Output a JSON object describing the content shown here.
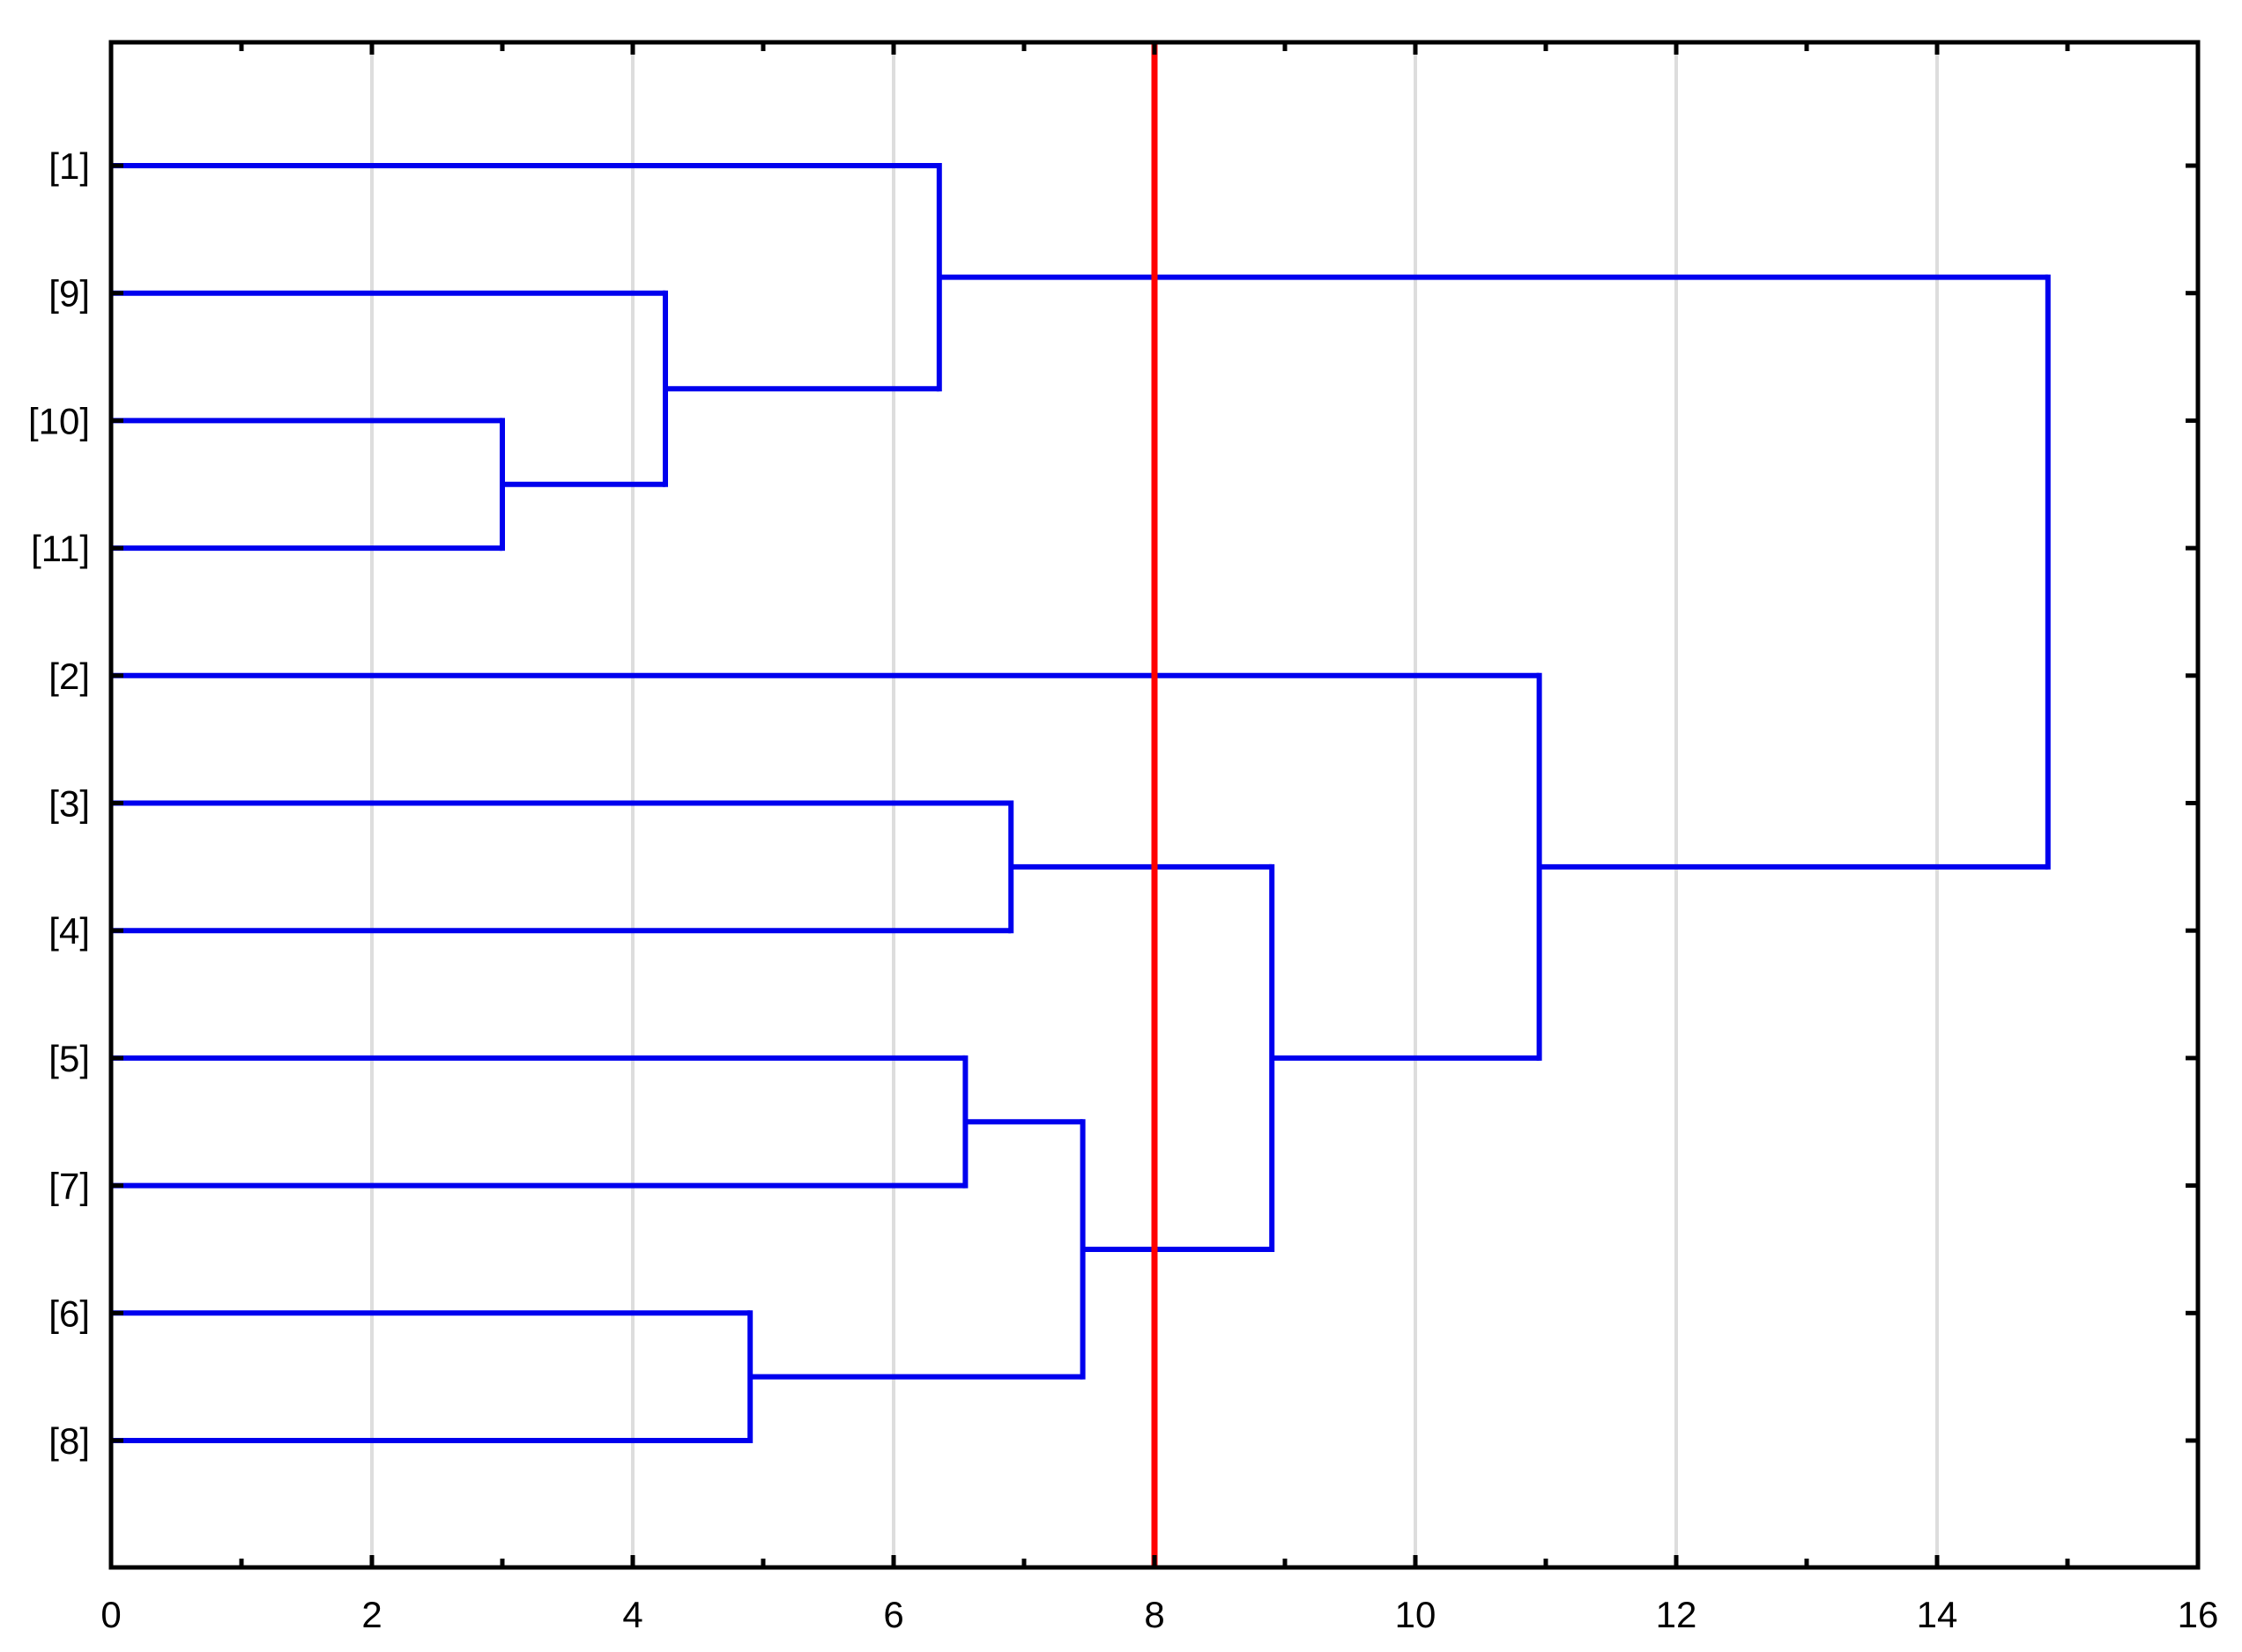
{
  "chart_data": {
    "type": "dendrogram",
    "orientation": "horizontal",
    "title": "",
    "xlabel": "",
    "ylabel": "",
    "xlim": [
      0,
      16
    ],
    "x_ticks": [
      0,
      2,
      4,
      6,
      8,
      10,
      12,
      14,
      16
    ],
    "x_tick_labels": [
      "0",
      "2",
      "4",
      "6",
      "8",
      "10",
      "12",
      "14",
      "16"
    ],
    "grid": "vertical",
    "leaves": [
      "[1]",
      "[9]",
      "[10]",
      "[11]",
      "[2]",
      "[3]",
      "[4]",
      "[5]",
      "[7]",
      "[6]",
      "[8]"
    ],
    "merges": [
      {
        "left": "[10]",
        "right": "[11]",
        "height": 3.0
      },
      {
        "left": "[9]",
        "right": "m0",
        "height": 4.25
      },
      {
        "left": "[1]",
        "right": "m1",
        "height": 6.35
      },
      {
        "left": "[6]",
        "right": "[8]",
        "height": 4.9
      },
      {
        "left": "[5]",
        "right": "[7]",
        "height": 6.55
      },
      {
        "left": "m4",
        "right": "m3",
        "height": 7.45
      },
      {
        "left": "[3]",
        "right": "[4]",
        "height": 6.9
      },
      {
        "left": "m6",
        "right": "m5",
        "height": 8.9
      },
      {
        "left": "[2]",
        "right": "m7",
        "height": 10.95
      },
      {
        "left": "m2",
        "right": "m8",
        "height": 14.85
      }
    ],
    "cut_line": {
      "x": 8,
      "color": "#ff0000"
    },
    "colors": {
      "branches": "#0000ee",
      "grid": "#dddddd",
      "axis": "#000000"
    }
  }
}
